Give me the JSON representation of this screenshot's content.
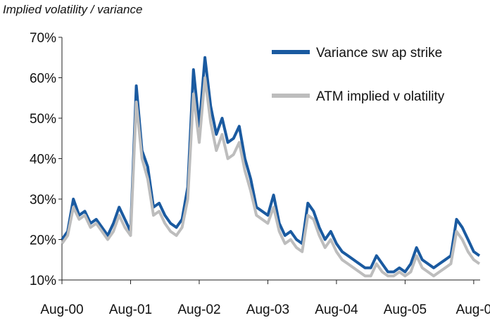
{
  "chart_data": {
    "type": "line",
    "title": "Implied volatility / variance",
    "xlabel": "",
    "ylabel": "",
    "ylim": [
      10,
      70
    ],
    "y_ticks": [
      "10%",
      "20%",
      "30%",
      "40%",
      "50%",
      "60%",
      "70%"
    ],
    "y_tick_values": [
      10,
      20,
      30,
      40,
      50,
      60,
      70
    ],
    "x_ticks": [
      "Aug-00",
      "Aug-01",
      "Aug-02",
      "Aug-03",
      "Aug-04",
      "Aug-05",
      "Aug-0"
    ],
    "x_tick_dates": [
      "2000-08",
      "2001-08",
      "2002-08",
      "2003-08",
      "2004-08",
      "2005-08",
      "2006-08"
    ],
    "x_range": [
      "2000-08",
      "2006-09"
    ],
    "grid": false,
    "legend_position": "top-right",
    "colors": {
      "variance": "#1a5aa0",
      "atm": "#bdbdbd"
    },
    "series": [
      {
        "name": "Variance sw ap strike",
        "x": [
          "2000-08",
          "2000-09",
          "2000-10",
          "2000-11",
          "2000-12",
          "2001-01",
          "2001-02",
          "2001-03",
          "2001-04",
          "2001-05",
          "2001-06",
          "2001-07",
          "2001-08",
          "2001-09",
          "2001-10",
          "2001-11",
          "2001-12",
          "2002-01",
          "2002-02",
          "2002-03",
          "2002-04",
          "2002-05",
          "2002-06",
          "2002-07",
          "2002-08",
          "2002-09",
          "2002-10",
          "2002-11",
          "2002-12",
          "2003-01",
          "2003-02",
          "2003-03",
          "2003-04",
          "2003-05",
          "2003-06",
          "2003-07",
          "2003-08",
          "2003-09",
          "2003-10",
          "2003-11",
          "2003-12",
          "2004-01",
          "2004-02",
          "2004-03",
          "2004-04",
          "2004-05",
          "2004-06",
          "2004-07",
          "2004-08",
          "2004-09",
          "2004-10",
          "2004-11",
          "2004-12",
          "2005-01",
          "2005-02",
          "2005-03",
          "2005-04",
          "2005-05",
          "2005-06",
          "2005-07",
          "2005-08",
          "2005-09",
          "2005-10",
          "2005-11",
          "2005-12",
          "2006-01",
          "2006-02",
          "2006-03",
          "2006-04",
          "2006-05",
          "2006-06",
          "2006-07",
          "2006-08",
          "2006-09"
        ],
        "values": [
          20,
          22,
          30,
          26,
          27,
          24,
          25,
          23,
          21,
          24,
          28,
          25,
          22,
          58,
          42,
          38,
          28,
          29,
          26,
          24,
          23,
          25,
          33,
          62,
          48,
          65,
          53,
          46,
          50,
          44,
          45,
          48,
          40,
          35,
          28,
          27,
          26,
          31,
          24,
          21,
          22,
          20,
          19,
          29,
          27,
          23,
          20,
          22,
          19,
          17,
          16,
          15,
          14,
          13,
          13,
          16,
          14,
          12,
          12,
          13,
          12,
          14,
          18,
          15,
          14,
          13,
          14,
          15,
          16,
          25,
          23,
          20,
          17,
          16
        ]
      },
      {
        "name": "ATM implied v olatility",
        "x": [
          "2000-08",
          "2000-09",
          "2000-10",
          "2000-11",
          "2000-12",
          "2001-01",
          "2001-02",
          "2001-03",
          "2001-04",
          "2001-05",
          "2001-06",
          "2001-07",
          "2001-08",
          "2001-09",
          "2001-10",
          "2001-11",
          "2001-12",
          "2002-01",
          "2002-02",
          "2002-03",
          "2002-04",
          "2002-05",
          "2002-06",
          "2002-07",
          "2002-08",
          "2002-09",
          "2002-10",
          "2002-11",
          "2002-12",
          "2003-01",
          "2003-02",
          "2003-03",
          "2003-04",
          "2003-05",
          "2003-06",
          "2003-07",
          "2003-08",
          "2003-09",
          "2003-10",
          "2003-11",
          "2003-12",
          "2004-01",
          "2004-02",
          "2004-03",
          "2004-04",
          "2004-05",
          "2004-06",
          "2004-07",
          "2004-08",
          "2004-09",
          "2004-10",
          "2004-11",
          "2004-12",
          "2005-01",
          "2005-02",
          "2005-03",
          "2005-04",
          "2005-05",
          "2005-06",
          "2005-07",
          "2005-08",
          "2005-09",
          "2005-10",
          "2005-11",
          "2005-12",
          "2006-01",
          "2006-02",
          "2006-03",
          "2006-04",
          "2006-05",
          "2006-06",
          "2006-07",
          "2006-08",
          "2006-09"
        ],
        "values": [
          19,
          21,
          28,
          25,
          26,
          23,
          24,
          22,
          20,
          22,
          26,
          23,
          21,
          54,
          40,
          35,
          26,
          27,
          24,
          22,
          21,
          23,
          30,
          56,
          44,
          60,
          49,
          42,
          46,
          40,
          41,
          44,
          37,
          32,
          26,
          25,
          24,
          28,
          22,
          19,
          20,
          18,
          17,
          26,
          25,
          21,
          18,
          20,
          17,
          15,
          14,
          13,
          12,
          11,
          11,
          14,
          12,
          11,
          11,
          12,
          11,
          12,
          16,
          13,
          12,
          11,
          12,
          13,
          14,
          22,
          20,
          17,
          15,
          14
        ]
      }
    ]
  }
}
